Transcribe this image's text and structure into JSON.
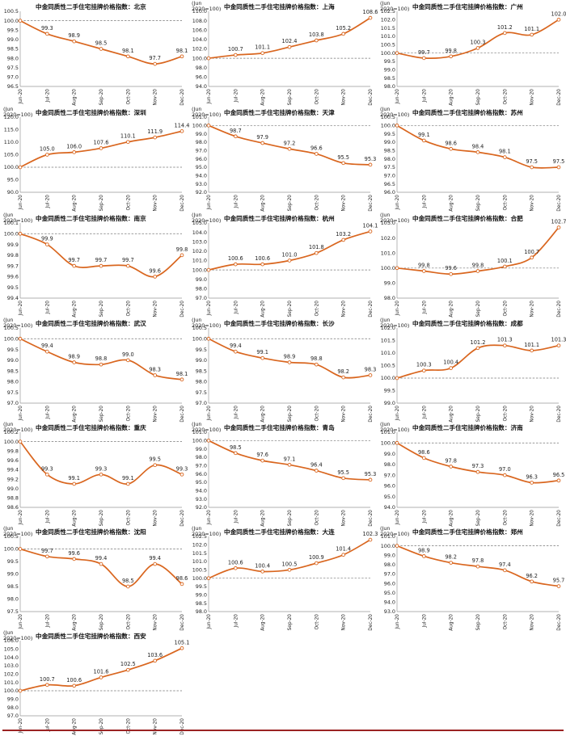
{
  "chart_data": [
    {
      "type": "line",
      "title": "中金同质性二手住宅挂牌价格指数：北京",
      "unit_line1": "",
      "unit_line2": "",
      "categories": [
        "Jun-20",
        "Jul-20",
        "Aug-20",
        "Sep-20",
        "Oct-20",
        "Nov-20",
        "Dec-20"
      ],
      "values": [
        100.0,
        99.3,
        98.9,
        98.5,
        98.1,
        97.7,
        98.1
      ],
      "data_labels": [
        "",
        "99.3",
        "98.9",
        "98.5",
        "98.1",
        "97.7",
        "98.1"
      ],
      "yticks": [
        "96.5",
        "97.0",
        "97.5",
        "98.0",
        "98.5",
        "99.0",
        "99.5",
        "100.0",
        "100.5"
      ],
      "ylim": [
        96.5,
        100.5
      ],
      "baseline": 100.0,
      "colors": {
        "line": "#d9661f",
        "baseline": "#777777"
      }
    },
    {
      "type": "line",
      "title": "中金同质性二手住宅挂牌价格指数：上海",
      "unit_line1": "(Jun",
      "unit_line2": "2020=100)",
      "categories": [
        "Jun-20",
        "Jul-20",
        "Aug-20",
        "Sep-20",
        "Oct-20",
        "Nov-20",
        "Dec-20"
      ],
      "values": [
        100.0,
        100.7,
        101.1,
        102.4,
        103.8,
        105.2,
        108.6
      ],
      "data_labels": [
        "",
        "100.7",
        "101.1",
        "102.4",
        "103.8",
        "105.2",
        "108.6"
      ],
      "yticks": [
        "94.0",
        "96.0",
        "98.0",
        "100.0",
        "102.0",
        "104.0",
        "106.0",
        "108.0",
        "110.0"
      ],
      "ylim": [
        94.0,
        110.0
      ],
      "baseline": 100.0,
      "colors": {
        "line": "#d9661f",
        "baseline": "#777777"
      }
    },
    {
      "type": "line",
      "title": "中金同质性二手住宅挂牌价格指数：广州",
      "unit_line1": "(Jun",
      "unit_line2": "2020=100)",
      "categories": [
        "Jun-20",
        "Jul-20",
        "Aug-20",
        "Sep-20",
        "Oct-20",
        "Nov-20",
        "Dec-20"
      ],
      "values": [
        100.0,
        99.7,
        99.8,
        100.3,
        101.2,
        101.1,
        102.0
      ],
      "data_labels": [
        "",
        "99.7",
        "99.8",
        "100.3",
        "101.2",
        "101.1",
        "102.0"
      ],
      "yticks": [
        "98.0",
        "98.5",
        "99.0",
        "99.5",
        "100.0",
        "100.5",
        "101.0",
        "101.5",
        "102.0",
        "102.5"
      ],
      "ylim": [
        98.0,
        102.5
      ],
      "baseline": 100.0,
      "colors": {
        "line": "#d9661f",
        "baseline": "#777777"
      }
    },
    {
      "type": "line",
      "title": "中金同质性二手住宅挂牌价格指数：深圳",
      "unit_line1": "(Jun",
      "unit_line2": "2020=100)",
      "categories": [
        "Jun-20",
        "Jul-20",
        "Aug-20",
        "Sep-20",
        "Oct-20",
        "Nov-20",
        "Dec-20"
      ],
      "values": [
        100.0,
        105.0,
        106.0,
        107.6,
        110.1,
        111.9,
        114.4
      ],
      "data_labels": [
        "",
        "105.0",
        "106.0",
        "107.6",
        "110.1",
        "111.9",
        "114.4"
      ],
      "yticks": [
        "90.0",
        "95.0",
        "100.0",
        "105.0",
        "110.0",
        "115.0",
        "120.0"
      ],
      "ylim": [
        90.0,
        120.0
      ],
      "baseline": 100.0,
      "colors": {
        "line": "#d9661f",
        "baseline": "#777777"
      }
    },
    {
      "type": "line",
      "title": "中金同质性二手住宅挂牌价格指数：天津",
      "unit_line1": "(Jun",
      "unit_line2": "2020=100)",
      "categories": [
        "Jun-20",
        "Jul-20",
        "Aug-20",
        "Sep-20",
        "Oct-20",
        "Nov-20",
        "Dec-20"
      ],
      "values": [
        100.0,
        98.7,
        97.9,
        97.2,
        96.6,
        95.5,
        95.3
      ],
      "data_labels": [
        "",
        "98.7",
        "97.9",
        "97.2",
        "96.6",
        "95.5",
        "95.3"
      ],
      "yticks": [
        "92.0",
        "93.0",
        "94.0",
        "95.0",
        "96.0",
        "97.0",
        "98.0",
        "99.0",
        "100.0",
        "101.0"
      ],
      "ylim": [
        92.0,
        101.0
      ],
      "baseline": 100.0,
      "colors": {
        "line": "#d9661f",
        "baseline": "#777777"
      }
    },
    {
      "type": "line",
      "title": "中金同质性二手住宅挂牌价格指数：苏州",
      "unit_line1": "(Jun",
      "unit_line2": "2020=100)",
      "categories": [
        "Jun-20",
        "Jul-20",
        "Aug-20",
        "Sep-20",
        "Oct-20",
        "Nov-20",
        "Dec-20"
      ],
      "values": [
        100.0,
        99.1,
        98.6,
        98.4,
        98.1,
        97.5,
        97.5
      ],
      "data_labels": [
        "",
        "99.1",
        "98.6",
        "98.4",
        "98.1",
        "97.5",
        "97.5"
      ],
      "yticks": [
        "96.0",
        "96.5",
        "97.0",
        "97.5",
        "98.0",
        "98.5",
        "99.0",
        "99.5",
        "100.0",
        "100.5"
      ],
      "ylim": [
        96.0,
        100.5
      ],
      "baseline": 100.0,
      "colors": {
        "line": "#d9661f",
        "baseline": "#777777"
      }
    },
    {
      "type": "line",
      "title": "中金同质性二手住宅挂牌价格指数：南京",
      "unit_line1": "(Jun",
      "unit_line2": "2020=100)",
      "categories": [
        "Jun-20",
        "Jul-20",
        "Aug-20",
        "Sep-20",
        "Oct-20",
        "Nov-20",
        "Dec-20"
      ],
      "values": [
        100.0,
        99.9,
        99.7,
        99.7,
        99.7,
        99.6,
        99.8
      ],
      "data_labels": [
        "",
        "99.9",
        "99.7",
        "99.7",
        "99.7",
        "99.6",
        "99.8"
      ],
      "yticks": [
        "99.4",
        "99.5",
        "99.6",
        "99.7",
        "99.8",
        "99.9",
        "100.0",
        "100.1"
      ],
      "ylim": [
        99.4,
        100.1
      ],
      "baseline": 100.0,
      "colors": {
        "line": "#d9661f",
        "baseline": "#777777"
      }
    },
    {
      "type": "line",
      "title": "中金同质性二手住宅挂牌价格指数：杭州",
      "unit_line1": "(Jun",
      "unit_line2": "2020=100)",
      "categories": [
        "Jun-20",
        "Jul-20",
        "Aug-20",
        "Sep-20",
        "Oct-20",
        "Nov-20",
        "Dec-20"
      ],
      "values": [
        100.0,
        100.6,
        100.6,
        101.0,
        101.8,
        103.2,
        104.1
      ],
      "data_labels": [
        "",
        "100.6",
        "100.6",
        "101.0",
        "101.8",
        "103.2",
        "104.1"
      ],
      "yticks": [
        "97.0",
        "98.0",
        "99.0",
        "100.0",
        "101.0",
        "102.0",
        "103.0",
        "104.0",
        "105.0"
      ],
      "ylim": [
        97.0,
        105.0
      ],
      "baseline": 100.0,
      "colors": {
        "line": "#d9661f",
        "baseline": "#777777"
      }
    },
    {
      "type": "line",
      "title": "中金同质性二手住宅挂牌价格指数：合肥",
      "unit_line1": "(Jun",
      "unit_line2": "2020=100)",
      "categories": [
        "Jun-20",
        "Jul-20",
        "Aug-20",
        "Sep-20",
        "Oct-20",
        "Nov-20",
        "Dec-20"
      ],
      "values": [
        100.0,
        99.8,
        99.6,
        99.8,
        100.1,
        100.7,
        102.7
      ],
      "data_labels": [
        "",
        "99.8",
        "99.6",
        "99.8",
        "100.1",
        "100.7",
        "102.7"
      ],
      "yticks": [
        "98.0",
        "99.0",
        "100.0",
        "101.0",
        "102.0",
        "103.0"
      ],
      "ylim": [
        98.0,
        103.0
      ],
      "baseline": 100.0,
      "colors": {
        "line": "#d9661f",
        "baseline": "#777777"
      }
    },
    {
      "type": "line",
      "title": "中金同质性二手住宅挂牌价格指数：武汉",
      "unit_line1": "(Jun",
      "unit_line2": "2020=100)",
      "categories": [
        "Jun-20",
        "Jul-20",
        "Aug-20",
        "Sep-20",
        "Oct-20",
        "Nov-20",
        "Dec-20"
      ],
      "values": [
        100.0,
        99.4,
        98.9,
        98.8,
        99.0,
        98.3,
        98.1
      ],
      "data_labels": [
        "",
        "99.4",
        "98.9",
        "98.8",
        "99.0",
        "98.3",
        "98.1"
      ],
      "yticks": [
        "97.0",
        "97.5",
        "98.0",
        "98.5",
        "99.0",
        "99.5",
        "100.0",
        "100.5"
      ],
      "ylim": [
        97.0,
        100.5
      ],
      "baseline": 100.0,
      "colors": {
        "line": "#d9661f",
        "baseline": "#777777"
      }
    },
    {
      "type": "line",
      "title": "中金同质性二手住宅挂牌价格指数：长沙",
      "unit_line1": "(Jun",
      "unit_line2": "2020=100)",
      "categories": [
        "Jun-20",
        "Jul-20",
        "Aug-20",
        "Sep-20",
        "Oct-20",
        "Nov-20",
        "Dec-20"
      ],
      "values": [
        100.0,
        99.4,
        99.1,
        98.9,
        98.8,
        98.2,
        98.3
      ],
      "data_labels": [
        "",
        "99.4",
        "99.1",
        "98.9",
        "98.8",
        "98.2",
        "98.3"
      ],
      "yticks": [
        "97.0",
        "97.5",
        "98.0",
        "98.5",
        "99.0",
        "99.5",
        "100.0",
        "100.5"
      ],
      "ylim": [
        97.0,
        100.5
      ],
      "baseline": 100.0,
      "colors": {
        "line": "#d9661f",
        "baseline": "#777777"
      }
    },
    {
      "type": "line",
      "title": "中金同质性二手住宅挂牌价格指数：成都",
      "unit_line1": "(Jun",
      "unit_line2": "2020=100)",
      "categories": [
        "Jun-20",
        "Jul-20",
        "Aug-20",
        "Sep-20",
        "Oct-20",
        "Nov-20",
        "Dec-20"
      ],
      "values": [
        100.0,
        100.3,
        100.4,
        101.2,
        101.3,
        101.1,
        101.3
      ],
      "data_labels": [
        "",
        "100.3",
        "100.4",
        "101.2",
        "101.3",
        "101.1",
        "101.3"
      ],
      "yticks": [
        "99.0",
        "99.5",
        "100.0",
        "100.5",
        "101.0",
        "101.5",
        "102.0"
      ],
      "ylim": [
        99.0,
        102.0
      ],
      "baseline": 100.0,
      "colors": {
        "line": "#d9661f",
        "baseline": "#777777"
      }
    },
    {
      "type": "line",
      "title": "中金同质性二手住宅挂牌价格指数：重庆",
      "unit_line1": "(Jun",
      "unit_line2": "2020=100)",
      "categories": [
        "Jun-20",
        "Jul-20",
        "Aug-20",
        "Sep-20",
        "Oct-20",
        "Nov-20",
        "Dec-20"
      ],
      "values": [
        100.0,
        99.3,
        99.1,
        99.3,
        99.1,
        99.5,
        99.3
      ],
      "data_labels": [
        "",
        "99.3",
        "99.1",
        "99.3",
        "99.1",
        "99.5",
        "99.3"
      ],
      "yticks": [
        "98.6",
        "98.8",
        "99.0",
        "99.2",
        "99.4",
        "99.6",
        "99.8",
        "100.0",
        "100.2"
      ],
      "ylim": [
        98.6,
        100.2
      ],
      "baseline": 100.0,
      "colors": {
        "line": "#d9661f",
        "baseline": "#777777"
      }
    },
    {
      "type": "line",
      "title": "中金同质性二手住宅挂牌价格指数：青岛",
      "unit_line1": "(Jun",
      "unit_line2": "2020=100)",
      "categories": [
        "Jun-20",
        "Jul-20",
        "Aug-20",
        "Sep-20",
        "Oct-20",
        "Nov-20",
        "Dec-20"
      ],
      "values": [
        100.0,
        98.5,
        97.6,
        97.1,
        96.4,
        95.5,
        95.3
      ],
      "data_labels": [
        "",
        "98.5",
        "97.6",
        "97.1",
        "96.4",
        "95.5",
        "95.3"
      ],
      "yticks": [
        "92.0",
        "93.0",
        "94.0",
        "95.0",
        "96.0",
        "97.0",
        "98.0",
        "99.0",
        "100.0",
        "101.0"
      ],
      "ylim": [
        92.0,
        101.0
      ],
      "baseline": 100.0,
      "colors": {
        "line": "#d9661f",
        "baseline": "#777777"
      }
    },
    {
      "type": "line",
      "title": "中金同质性二手住宅挂牌价格指数：济南",
      "unit_line1": "(Jun",
      "unit_line2": "2020=100)",
      "categories": [
        "Jun-20",
        "Jul-20",
        "Aug-20",
        "Sep-20",
        "Oct-20",
        "Nov-20",
        "Dec-20"
      ],
      "values": [
        100.0,
        98.6,
        97.8,
        97.3,
        97.0,
        96.3,
        96.5
      ],
      "data_labels": [
        "",
        "98.6",
        "97.8",
        "97.3",
        "97.0",
        "96.3",
        "96.5"
      ],
      "yticks": [
        "94.0",
        "95.0",
        "96.0",
        "97.0",
        "98.0",
        "99.0",
        "100.0",
        "101.0"
      ],
      "ylim": [
        94.0,
        101.0
      ],
      "baseline": 100.0,
      "colors": {
        "line": "#d9661f",
        "baseline": "#777777"
      }
    },
    {
      "type": "line",
      "title": "中金同质性二手住宅挂牌价格指数：沈阳",
      "unit_line1": "(Jun",
      "unit_line2": "2020=100)",
      "categories": [
        "Jun-20",
        "Jul-20",
        "Aug-20",
        "Sep-20",
        "Oct-20",
        "Nov-20",
        "Dec-20"
      ],
      "values": [
        100.0,
        99.7,
        99.6,
        99.4,
        98.5,
        99.4,
        98.6
      ],
      "data_labels": [
        "",
        "99.7",
        "99.6",
        "99.4",
        "98.5",
        "99.4",
        "98.6"
      ],
      "yticks": [
        "97.5",
        "98.0",
        "98.5",
        "99.0",
        "99.5",
        "100.0",
        "100.5"
      ],
      "ylim": [
        97.5,
        100.5
      ],
      "baseline": 100.0,
      "colors": {
        "line": "#d9661f",
        "baseline": "#777777"
      }
    },
    {
      "type": "line",
      "title": "中金同质性二手住宅挂牌价格指数：大连",
      "unit_line1": "(Jun",
      "unit_line2": "2020=100)",
      "categories": [
        "Jun-20",
        "Jul-20",
        "Aug-20",
        "Sep-20",
        "Oct-20",
        "Nov-20",
        "Dec-20"
      ],
      "values": [
        100.0,
        100.6,
        100.4,
        100.5,
        100.9,
        101.4,
        102.3
      ],
      "data_labels": [
        "",
        "100.6",
        "100.4",
        "100.5",
        "100.9",
        "101.4",
        "102.3"
      ],
      "yticks": [
        "98.0",
        "98.5",
        "99.0",
        "99.5",
        "100.0",
        "100.5",
        "101.0",
        "101.5",
        "102.0",
        "102.5"
      ],
      "ylim": [
        98.0,
        102.5
      ],
      "baseline": 100.0,
      "colors": {
        "line": "#d9661f",
        "baseline": "#777777"
      }
    },
    {
      "type": "line",
      "title": "中金同质性二手住宅挂牌价格指数：郑州",
      "unit_line1": "(Jun",
      "unit_line2": "2020=100)",
      "categories": [
        "Jun-20",
        "Jul-20",
        "Aug-20",
        "Sep-20",
        "Oct-20",
        "Nov-20",
        "Dec-20"
      ],
      "values": [
        100.0,
        98.9,
        98.2,
        97.8,
        97.4,
        96.2,
        95.7
      ],
      "data_labels": [
        "",
        "98.9",
        "98.2",
        "97.8",
        "97.4",
        "96.2",
        "95.7"
      ],
      "yticks": [
        "93.0",
        "94.0",
        "95.0",
        "96.0",
        "97.0",
        "98.0",
        "99.0",
        "100.0",
        "101.0"
      ],
      "ylim": [
        93.0,
        101.0
      ],
      "baseline": 100.0,
      "colors": {
        "line": "#d9661f",
        "baseline": "#777777"
      }
    },
    {
      "type": "line",
      "title": "中金同质性二手住宅挂牌价格指数：西安",
      "unit_line1": "(Jun",
      "unit_line2": "2020=100)",
      "categories": [
        "Jun-20",
        "Jul-20",
        "Aug-20",
        "Sep-20",
        "Oct-20",
        "Nov-20",
        "Dec-20"
      ],
      "values": [
        100.0,
        100.7,
        100.6,
        101.6,
        102.5,
        103.6,
        105.1
      ],
      "data_labels": [
        "",
        "100.7",
        "100.6",
        "101.6",
        "102.5",
        "103.6",
        "105.1"
      ],
      "yticks": [
        "97.0",
        "98.0",
        "99.0",
        "100.0",
        "101.0",
        "102.0",
        "103.0",
        "104.0",
        "105.0",
        "106.0"
      ],
      "ylim": [
        97.0,
        106.0
      ],
      "baseline": 100.0,
      "colors": {
        "line": "#d9661f",
        "baseline": "#777777"
      }
    }
  ]
}
